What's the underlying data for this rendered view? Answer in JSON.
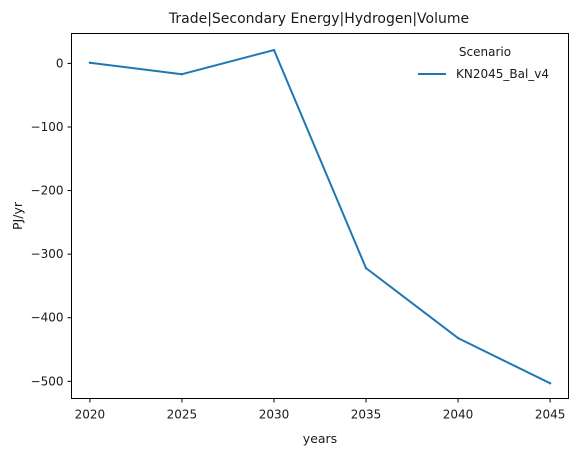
{
  "chart_data": {
    "type": "line",
    "title": "Trade|Secondary Energy|Hydrogen|Volume",
    "xlabel": "years",
    "ylabel": "PJ/yr",
    "x": [
      2020,
      2025,
      2030,
      2035,
      2040,
      2045
    ],
    "xlim": [
      2019,
      2046
    ],
    "ylim": [
      -527,
      47
    ],
    "xticks": [
      2020,
      2025,
      2030,
      2035,
      2040,
      2045
    ],
    "yticks": [
      0,
      -100,
      -200,
      -300,
      -400,
      -500
    ],
    "ytick_labels": [
      "0",
      "−100",
      "−200",
      "−300",
      "−400",
      "−500"
    ],
    "grid": false,
    "legend": {
      "title": "Scenario",
      "placement": "top-right"
    },
    "series": [
      {
        "name": "KN2045_Bal_v4",
        "color": "#1f77b4",
        "values": [
          1,
          -17,
          21,
          -322,
          -432,
          -503
        ]
      }
    ]
  }
}
